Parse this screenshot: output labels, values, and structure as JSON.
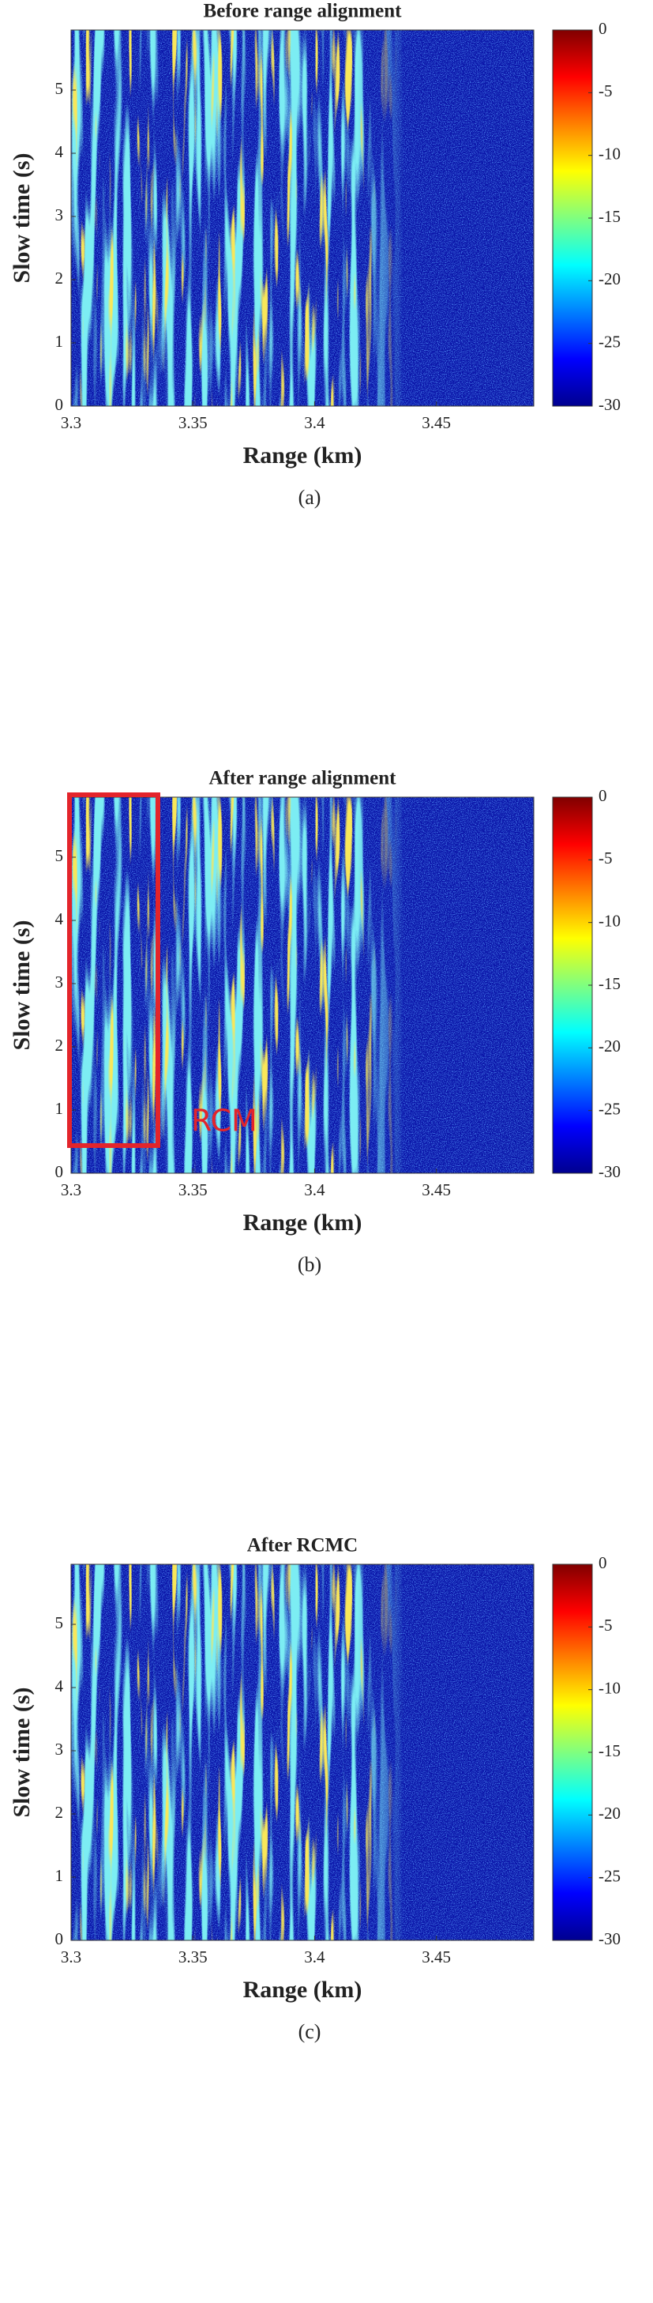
{
  "chart_data": [
    {
      "type": "heatmap",
      "title": "Before range alignment",
      "xlabel": "Range (km)",
      "ylabel": "Slow time (s)",
      "xlim": [
        3.3,
        3.49
      ],
      "xticks": [
        3.3,
        3.35,
        3.4,
        3.45
      ],
      "ylim": [
        0,
        5.95
      ],
      "yticks": [
        0,
        1,
        2,
        3,
        4,
        5
      ],
      "clim": [
        -30,
        0
      ],
      "cticks": [
        0,
        -5,
        -10,
        -15,
        -20,
        -25,
        -30
      ],
      "colormap": "jet",
      "caption": "(a)"
    },
    {
      "type": "heatmap",
      "title": "After range alignment",
      "xlabel": "Range (km)",
      "ylabel": "Slow time (s)",
      "xlim": [
        3.3,
        3.49
      ],
      "xticks": [
        3.3,
        3.35,
        3.4,
        3.45
      ],
      "ylim": [
        0,
        5.95
      ],
      "yticks": [
        0,
        1,
        2,
        3,
        4,
        5
      ],
      "clim": [
        -30,
        0
      ],
      "cticks": [
        0,
        -5,
        -10,
        -15,
        -20,
        -25,
        -30
      ],
      "colormap": "jet",
      "caption": "(b)",
      "annotation": "RCM"
    },
    {
      "type": "heatmap",
      "title": "After RCMC",
      "xlabel": "Range (km)",
      "ylabel": "Slow time (s)",
      "xlim": [
        3.3,
        3.49
      ],
      "xticks": [
        3.3,
        3.35,
        3.4,
        3.45
      ],
      "ylim": [
        0,
        5.95
      ],
      "yticks": [
        0,
        1,
        2,
        3,
        4,
        5
      ],
      "clim": [
        -30,
        0
      ],
      "cticks": [
        0,
        -5,
        -10,
        -15,
        -20,
        -25,
        -30
      ],
      "colormap": "jet",
      "caption": "(c)"
    }
  ]
}
